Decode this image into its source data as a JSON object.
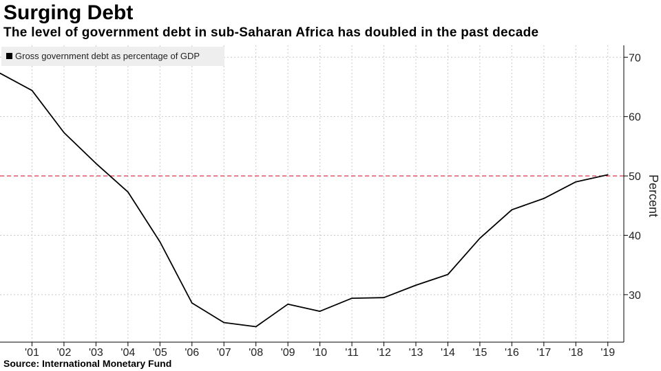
{
  "chart_data": {
    "type": "line",
    "title": "Surging Debt",
    "subtitle": "The level of government debt in sub-Saharan Africa has doubled in the past decade",
    "source": "Source: International Monetary Fund",
    "ylabel": "Percent",
    "xlabel": "",
    "x": [
      2000,
      2001,
      2002,
      2003,
      2004,
      2005,
      2006,
      2007,
      2008,
      2009,
      2010,
      2011,
      2012,
      2013,
      2014,
      2015,
      2016,
      2017,
      2018,
      2019
    ],
    "tick_labels": [
      "'01",
      "'02",
      "'03",
      "'04",
      "'05",
      "'06",
      "'07",
      "'08",
      "'09",
      "'10",
      "'11",
      "'12",
      "'13",
      "'14",
      "'15",
      "'16",
      "'17",
      "'18",
      "'19"
    ],
    "tick_years": [
      2001,
      2002,
      2003,
      2004,
      2005,
      2006,
      2007,
      2008,
      2009,
      2010,
      2011,
      2012,
      2013,
      2014,
      2015,
      2016,
      2017,
      2018,
      2019
    ],
    "series": [
      {
        "name": "Gross government debt as percentage of GDP",
        "values": [
          67.3,
          64.4,
          57.3,
          52.1,
          47.3,
          38.9,
          28.6,
          25.3,
          24.6,
          28.4,
          27.2,
          29.4,
          29.5,
          31.6,
          33.4,
          39.5,
          44.3,
          46.2,
          49.0,
          50.2
        ],
        "color": "#000000"
      }
    ],
    "yticks": [
      30,
      40,
      50,
      60,
      70
    ],
    "ylim": [
      22,
      72
    ],
    "xlim": [
      2000,
      2019.5
    ],
    "reference_line": {
      "value": 50,
      "color": "#e0465a",
      "style": "dashed"
    },
    "grid": true,
    "legend_position": "top-left",
    "axis_side": "right"
  }
}
